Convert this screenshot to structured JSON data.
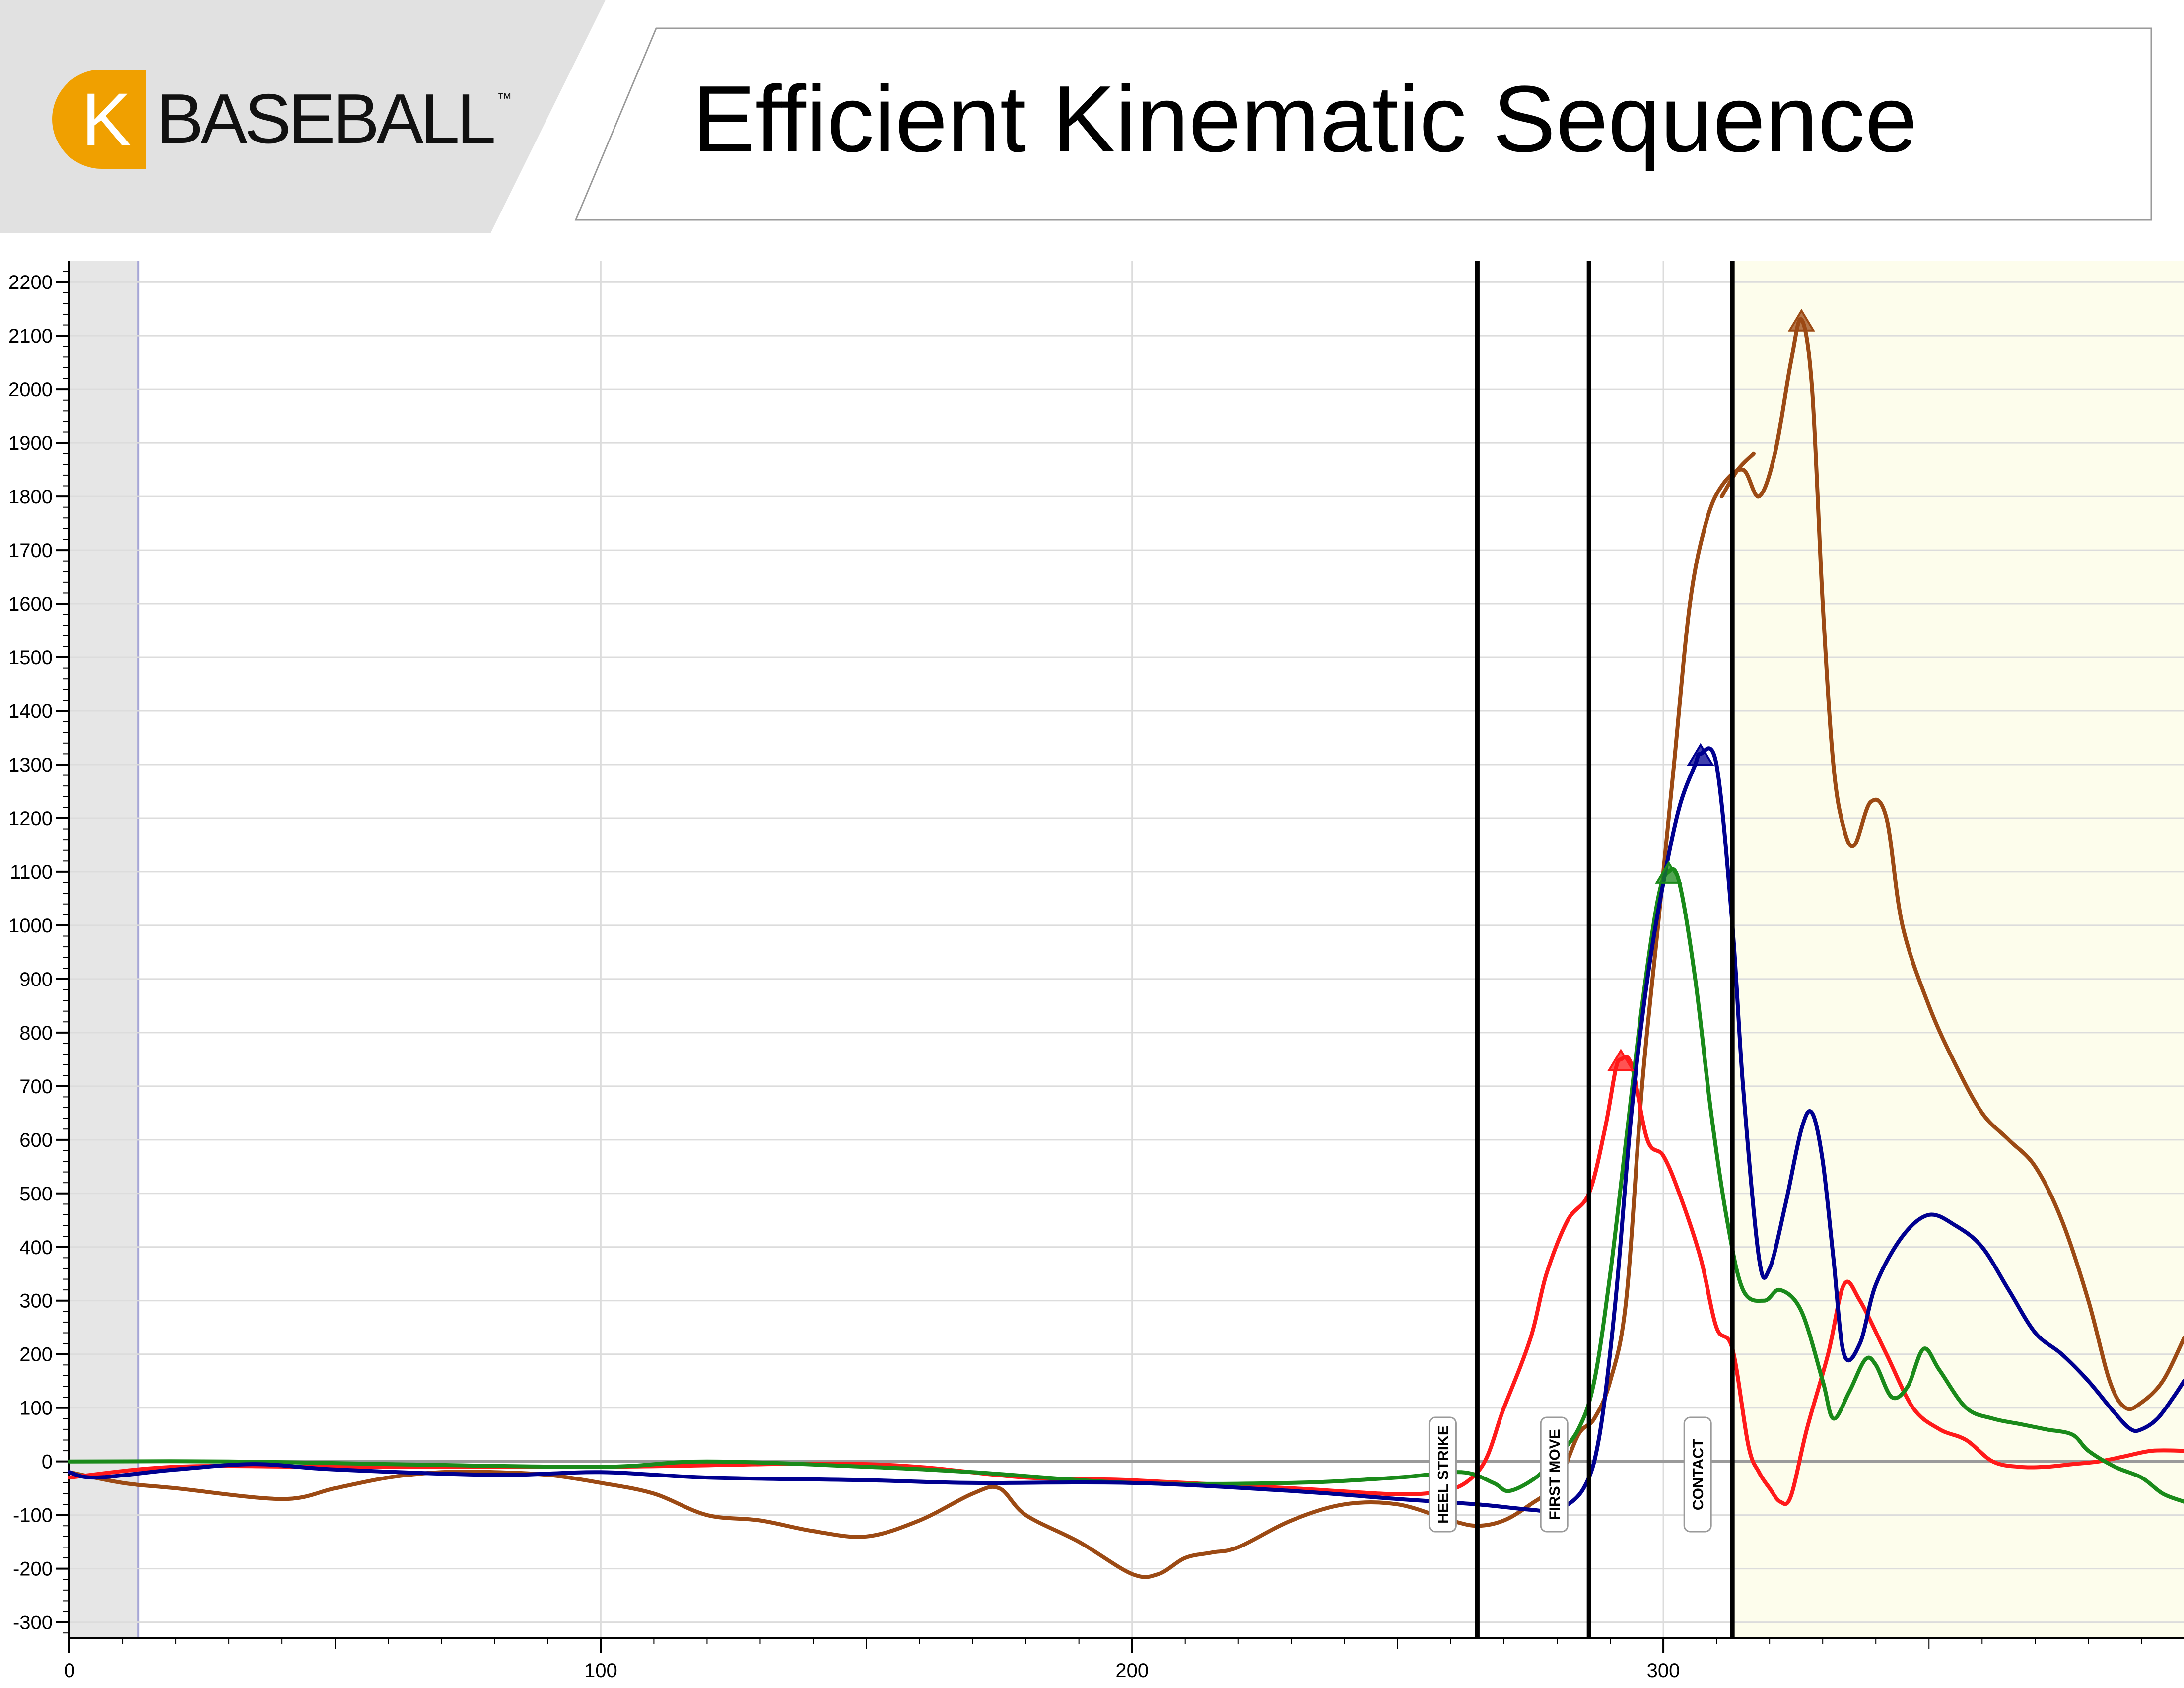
{
  "header": {
    "logo": {
      "mark": "K",
      "wordmark": "BASEBALL",
      "trademark": "™"
    },
    "title": "Efficient Kinematic Sequence"
  },
  "colors": {
    "pelvis": "#ff1a1a",
    "torso": "#1a8a1a",
    "arm": "#000090",
    "hand": "#9c4a14",
    "post_contact_band": "#fdfdec",
    "pre_start_band": "#e6e6e6",
    "grid": "#dcdcdc",
    "zero_line": "#9a9a9a"
  },
  "chart_data": {
    "type": "line",
    "title": "",
    "xlabel": "",
    "ylabel": "",
    "xlim": [
      0,
      398
    ],
    "ylim": [
      -330,
      2240
    ],
    "x_ticks": [
      0,
      100,
      200,
      300
    ],
    "y_ticks": [
      -300,
      -200,
      -100,
      0,
      100,
      200,
      300,
      400,
      500,
      600,
      700,
      800,
      900,
      1000,
      1100,
      1200,
      1300,
      1400,
      1500,
      1600,
      1700,
      1800,
      1900,
      2000,
      2100,
      2200
    ],
    "grid": true,
    "shaded_regions": [
      {
        "x_start": 0,
        "x_end": 13,
        "kind": "pre-start"
      },
      {
        "x_start": 313,
        "x_end": 398,
        "kind": "post-contact"
      }
    ],
    "event_markers": [
      {
        "x": 265,
        "label": "HEEL STRIKE"
      },
      {
        "x": 286,
        "label": "FIRST MOVE"
      },
      {
        "x": 313,
        "label": "CONTACT"
      }
    ],
    "series": [
      {
        "color": "#ff1a1a",
        "peak": {
          "x": 292,
          "y": 750
        },
        "points": [
          [
            0,
            -30
          ],
          [
            20,
            -10
          ],
          [
            50,
            -10
          ],
          [
            100,
            -10
          ],
          [
            150,
            -5
          ],
          [
            180,
            -30
          ],
          [
            200,
            -35
          ],
          [
            230,
            -50
          ],
          [
            255,
            -60
          ],
          [
            265,
            -20
          ],
          [
            270,
            100
          ],
          [
            275,
            230
          ],
          [
            278,
            350
          ],
          [
            282,
            450
          ],
          [
            286,
            500
          ],
          [
            289,
            620
          ],
          [
            291,
            730
          ],
          [
            292,
            750
          ],
          [
            294,
            740
          ],
          [
            297,
            600
          ],
          [
            300,
            570
          ],
          [
            303,
            500
          ],
          [
            307,
            380
          ],
          [
            310,
            250
          ],
          [
            313,
            210
          ],
          [
            316,
            30
          ],
          [
            318,
            -20
          ],
          [
            320,
            -50
          ],
          [
            322,
            -75
          ],
          [
            324,
            -65
          ],
          [
            327,
            60
          ],
          [
            331,
            200
          ],
          [
            334,
            330
          ],
          [
            337,
            300
          ],
          [
            342,
            200
          ],
          [
            347,
            100
          ],
          [
            352,
            60
          ],
          [
            357,
            40
          ],
          [
            362,
            0
          ],
          [
            367,
            -10
          ],
          [
            372,
            -10
          ],
          [
            377,
            -5
          ],
          [
            382,
            0
          ],
          [
            387,
            10
          ],
          [
            392,
            20
          ],
          [
            398,
            20
          ]
        ]
      },
      {
        "color": "#1a8a1a",
        "peak": {
          "x": 301,
          "y": 1100
        },
        "points": [
          [
            0,
            0
          ],
          [
            30,
            0
          ],
          [
            60,
            -5
          ],
          [
            100,
            -10
          ],
          [
            120,
            0
          ],
          [
            150,
            -10
          ],
          [
            170,
            -20
          ],
          [
            200,
            -40
          ],
          [
            230,
            -40
          ],
          [
            250,
            -30
          ],
          [
            262,
            -20
          ],
          [
            268,
            -40
          ],
          [
            271,
            -55
          ],
          [
            276,
            -30
          ],
          [
            280,
            10
          ],
          [
            284,
            60
          ],
          [
            287,
            150
          ],
          [
            290,
            350
          ],
          [
            293,
            600
          ],
          [
            296,
            850
          ],
          [
            299,
            1050
          ],
          [
            301,
            1100
          ],
          [
            303,
            1080
          ],
          [
            306,
            900
          ],
          [
            309,
            650
          ],
          [
            312,
            450
          ],
          [
            315,
            320
          ],
          [
            319,
            300
          ],
          [
            322,
            320
          ],
          [
            326,
            280
          ],
          [
            330,
            150
          ],
          [
            332,
            80
          ],
          [
            335,
            130
          ],
          [
            338,
            190
          ],
          [
            340,
            180
          ],
          [
            343,
            120
          ],
          [
            346,
            140
          ],
          [
            349,
            210
          ],
          [
            352,
            170
          ],
          [
            357,
            100
          ],
          [
            362,
            80
          ],
          [
            367,
            70
          ],
          [
            372,
            60
          ],
          [
            377,
            50
          ],
          [
            380,
            20
          ],
          [
            385,
            -10
          ],
          [
            390,
            -30
          ],
          [
            394,
            -60
          ],
          [
            398,
            -75
          ]
        ]
      },
      {
        "color": "#000090",
        "peak": {
          "x": 307,
          "y": 1320
        },
        "points": [
          [
            0,
            -20
          ],
          [
            5,
            -30
          ],
          [
            20,
            -15
          ],
          [
            35,
            -5
          ],
          [
            50,
            -15
          ],
          [
            80,
            -25
          ],
          [
            100,
            -20
          ],
          [
            120,
            -30
          ],
          [
            150,
            -35
          ],
          [
            170,
            -40
          ],
          [
            200,
            -40
          ],
          [
            230,
            -55
          ],
          [
            250,
            -70
          ],
          [
            265,
            -80
          ],
          [
            275,
            -90
          ],
          [
            280,
            -90
          ],
          [
            285,
            -50
          ],
          [
            288,
            50
          ],
          [
            291,
            300
          ],
          [
            294,
            650
          ],
          [
            297,
            900
          ],
          [
            300,
            1080
          ],
          [
            303,
            1220
          ],
          [
            306,
            1300
          ],
          [
            307,
            1320
          ],
          [
            310,
            1300
          ],
          [
            313,
            1000
          ],
          [
            315,
            700
          ],
          [
            318,
            380
          ],
          [
            320,
            360
          ],
          [
            323,
            480
          ],
          [
            326,
            620
          ],
          [
            328,
            650
          ],
          [
            330,
            560
          ],
          [
            332,
            380
          ],
          [
            334,
            200
          ],
          [
            337,
            220
          ],
          [
            340,
            330
          ],
          [
            345,
            420
          ],
          [
            350,
            460
          ],
          [
            355,
            440
          ],
          [
            360,
            400
          ],
          [
            365,
            320
          ],
          [
            370,
            240
          ],
          [
            375,
            200
          ],
          [
            380,
            150
          ],
          [
            385,
            90
          ],
          [
            388,
            60
          ],
          [
            390,
            60
          ],
          [
            393,
            80
          ],
          [
            396,
            120
          ],
          [
            398,
            150
          ]
        ]
      },
      {
        "color": "#9c4a14",
        "peak": {
          "x": 326,
          "y": 2130
        },
        "points": [
          [
            0,
            -20
          ],
          [
            10,
            -40
          ],
          [
            20,
            -50
          ],
          [
            40,
            -70
          ],
          [
            50,
            -50
          ],
          [
            60,
            -30
          ],
          [
            70,
            -20
          ],
          [
            80,
            -20
          ],
          [
            90,
            -25
          ],
          [
            100,
            -40
          ],
          [
            110,
            -60
          ],
          [
            120,
            -100
          ],
          [
            130,
            -110
          ],
          [
            140,
            -130
          ],
          [
            150,
            -140
          ],
          [
            160,
            -110
          ],
          [
            170,
            -60
          ],
          [
            175,
            -50
          ],
          [
            180,
            -100
          ],
          [
            190,
            -150
          ],
          [
            200,
            -210
          ],
          [
            205,
            -210
          ],
          [
            210,
            -180
          ],
          [
            215,
            -170
          ],
          [
            220,
            -160
          ],
          [
            230,
            -110
          ],
          [
            240,
            -80
          ],
          [
            250,
            -80
          ],
          [
            260,
            -110
          ],
          [
            265,
            -120
          ],
          [
            270,
            -110
          ],
          [
            275,
            -80
          ],
          [
            280,
            -40
          ],
          [
            284,
            50
          ],
          [
            287,
            80
          ],
          [
            290,
            150
          ],
          [
            293,
            300
          ],
          [
            296,
            700
          ],
          [
            299,
            1000
          ],
          [
            302,
            1300
          ],
          [
            305,
            1600
          ],
          [
            308,
            1750
          ],
          [
            311,
            1820
          ],
          [
            315,
            1850
          ],
          [
            318,
            1800
          ],
          [
            321,
            1880
          ],
          [
            324,
            2050
          ],
          [
            326,
            2130
          ],
          [
            328,
            2000
          ],
          [
            330,
            1600
          ],
          [
            332,
            1300
          ],
          [
            334,
            1180
          ],
          [
            336,
            1150
          ],
          [
            339,
            1230
          ],
          [
            342,
            1200
          ],
          [
            345,
            1000
          ],
          [
            350,
            850
          ],
          [
            355,
            740
          ],
          [
            360,
            650
          ],
          [
            365,
            600
          ],
          [
            370,
            550
          ],
          [
            375,
            450
          ],
          [
            380,
            300
          ],
          [
            384,
            150
          ],
          [
            387,
            100
          ],
          [
            390,
            110
          ],
          [
            394,
            150
          ],
          [
            398,
            230
          ]
        ]
      },
      {
        "color": "#9c4a14",
        "segment": "sensor-jump",
        "points": [
          [
            311,
            1800
          ],
          [
            314,
            1850
          ],
          [
            317,
            1880
          ]
        ]
      }
    ]
  }
}
